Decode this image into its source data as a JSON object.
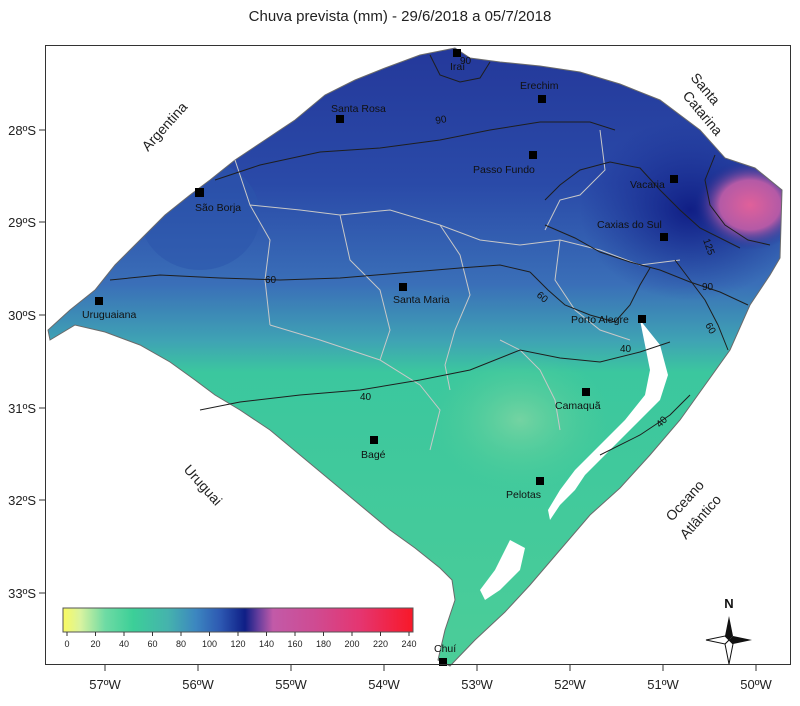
{
  "title": "Chuva prevista (mm) - 29/6/2018 a 05/7/2018",
  "lat_ticks": [
    "28ºS",
    "29ºS",
    "30ºS",
    "31ºS",
    "32ºS",
    "33ºS"
  ],
  "lon_ticks": [
    "57ºW",
    "56ºW",
    "55ºW",
    "54ºW",
    "53ºW",
    "52ºW",
    "51ºW",
    "50ºW"
  ],
  "cities": [
    {
      "name": "Iraí"
    },
    {
      "name": "Erechim"
    },
    {
      "name": "Santa Rosa"
    },
    {
      "name": "Passo Fundo"
    },
    {
      "name": "Vacaria"
    },
    {
      "name": "São Borja"
    },
    {
      "name": "Caxias do Sul"
    },
    {
      "name": "Santa Maria"
    },
    {
      "name": "Uruguaiana"
    },
    {
      "name": "Porto Alegre"
    },
    {
      "name": "Camaquã"
    },
    {
      "name": "Bagé"
    },
    {
      "name": "Pelotas"
    },
    {
      "name": "Chuí"
    }
  ],
  "regions": {
    "argentina": "Argentina",
    "uruguai": "Uruguai",
    "santa_catarina_1": "Santa",
    "santa_catarina_2": "Catarina",
    "oceano_1": "Oceano",
    "oceano_2": "Atlântico"
  },
  "contours": [
    "90",
    "90",
    "125",
    "90",
    "60",
    "60",
    "60",
    "40",
    "40",
    "40"
  ],
  "colorbar": {
    "ticks": [
      "0",
      "20",
      "40",
      "60",
      "80",
      "100",
      "120",
      "140",
      "160",
      "180",
      "200",
      "220",
      "240"
    ],
    "colors": [
      "#f5f57a",
      "#c9ecb0",
      "#3ccf98",
      "#4bbd9f",
      "#4aa6b5",
      "#3b7fc0",
      "#2c52b0",
      "#1e2f9a",
      "#0f1f86",
      "#c25aa8",
      "#d6468e",
      "#ea2f68",
      "#f51c30"
    ]
  },
  "compass": "N"
}
